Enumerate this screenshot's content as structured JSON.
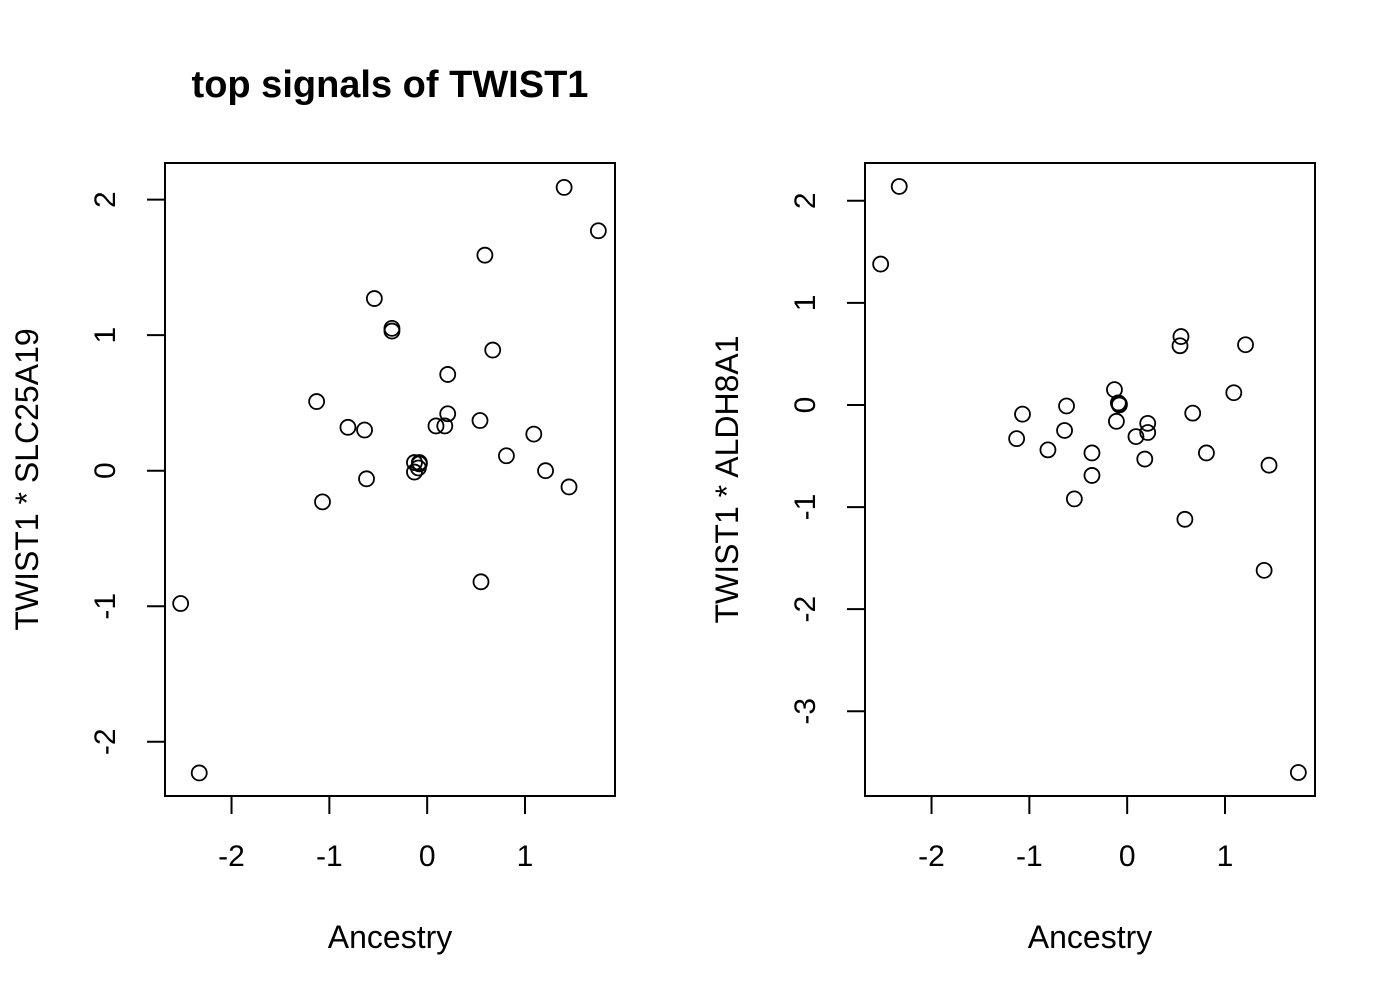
{
  "figure": {
    "title": "top signals of TWIST1"
  },
  "chart_data": [
    {
      "type": "scatter",
      "title": "top signals of TWIST1",
      "xlabel": "Ancestry",
      "ylabel": "TWIST1 * SLC25A19",
      "xlim": [
        -2.68,
        1.92
      ],
      "ylim": [
        -2.4,
        2.27
      ],
      "xticks": [
        -2,
        -1,
        0,
        1
      ],
      "yticks": [
        -2,
        -1,
        0,
        1,
        2
      ],
      "grid": false,
      "points": [
        {
          "x": -2.52,
          "y": -0.98
        },
        {
          "x": -2.33,
          "y": -2.23
        },
        {
          "x": -1.13,
          "y": 0.51
        },
        {
          "x": -1.07,
          "y": -0.23
        },
        {
          "x": -0.81,
          "y": 0.32
        },
        {
          "x": -0.64,
          "y": 0.3
        },
        {
          "x": -0.62,
          "y": -0.06
        },
        {
          "x": -0.54,
          "y": 1.27
        },
        {
          "x": -0.36,
          "y": 1.05
        },
        {
          "x": -0.36,
          "y": 1.03
        },
        {
          "x": -0.13,
          "y": 0.06
        },
        {
          "x": -0.13,
          "y": -0.01
        },
        {
          "x": -0.09,
          "y": 0.02
        },
        {
          "x": -0.08,
          "y": 0.05
        },
        {
          "x": -0.08,
          "y": 0.06
        },
        {
          "x": 0.09,
          "y": 0.33
        },
        {
          "x": 0.18,
          "y": 0.33
        },
        {
          "x": 0.21,
          "y": 0.71
        },
        {
          "x": 0.21,
          "y": 0.42
        },
        {
          "x": 0.54,
          "y": 0.37
        },
        {
          "x": 0.55,
          "y": -0.82
        },
        {
          "x": 0.59,
          "y": 1.59
        },
        {
          "x": 0.67,
          "y": 0.89
        },
        {
          "x": 0.81,
          "y": 0.11
        },
        {
          "x": 1.09,
          "y": 0.27
        },
        {
          "x": 1.21,
          "y": 0.0
        },
        {
          "x": 1.4,
          "y": 2.09
        },
        {
          "x": 1.45,
          "y": -0.12
        },
        {
          "x": 1.75,
          "y": 1.77
        }
      ]
    },
    {
      "type": "scatter",
      "title": "",
      "xlabel": "Ancestry",
      "ylabel": "TWIST1 * ALDH8A1",
      "xlim": [
        -2.68,
        1.92
      ],
      "ylim": [
        -3.83,
        2.37
      ],
      "xticks": [
        -2,
        -1,
        0,
        1
      ],
      "yticks": [
        -3,
        -2,
        -1,
        0,
        1,
        2
      ],
      "grid": false,
      "points": [
        {
          "x": -2.52,
          "y": 1.38
        },
        {
          "x": -2.33,
          "y": 2.14
        },
        {
          "x": -1.13,
          "y": -0.33
        },
        {
          "x": -1.07,
          "y": -0.09
        },
        {
          "x": -0.81,
          "y": -0.44
        },
        {
          "x": -0.64,
          "y": -0.25
        },
        {
          "x": -0.62,
          "y": -0.01
        },
        {
          "x": -0.54,
          "y": -0.92
        },
        {
          "x": -0.36,
          "y": -0.47
        },
        {
          "x": -0.36,
          "y": -0.69
        },
        {
          "x": -0.13,
          "y": 0.15
        },
        {
          "x": -0.11,
          "y": -0.16
        },
        {
          "x": -0.09,
          "y": 0.02
        },
        {
          "x": -0.08,
          "y": 0.0
        },
        {
          "x": -0.08,
          "y": 0.01
        },
        {
          "x": 0.09,
          "y": -0.31
        },
        {
          "x": 0.18,
          "y": -0.53
        },
        {
          "x": 0.21,
          "y": -0.18
        },
        {
          "x": 0.21,
          "y": -0.27
        },
        {
          "x": 0.54,
          "y": 0.58
        },
        {
          "x": 0.55,
          "y": 0.67
        },
        {
          "x": 0.59,
          "y": -1.12
        },
        {
          "x": 0.67,
          "y": -0.08
        },
        {
          "x": 0.81,
          "y": -0.47
        },
        {
          "x": 1.09,
          "y": 0.12
        },
        {
          "x": 1.21,
          "y": 0.59
        },
        {
          "x": 1.4,
          "y": -1.62
        },
        {
          "x": 1.45,
          "y": -0.59
        },
        {
          "x": 1.75,
          "y": -3.6
        }
      ]
    }
  ]
}
